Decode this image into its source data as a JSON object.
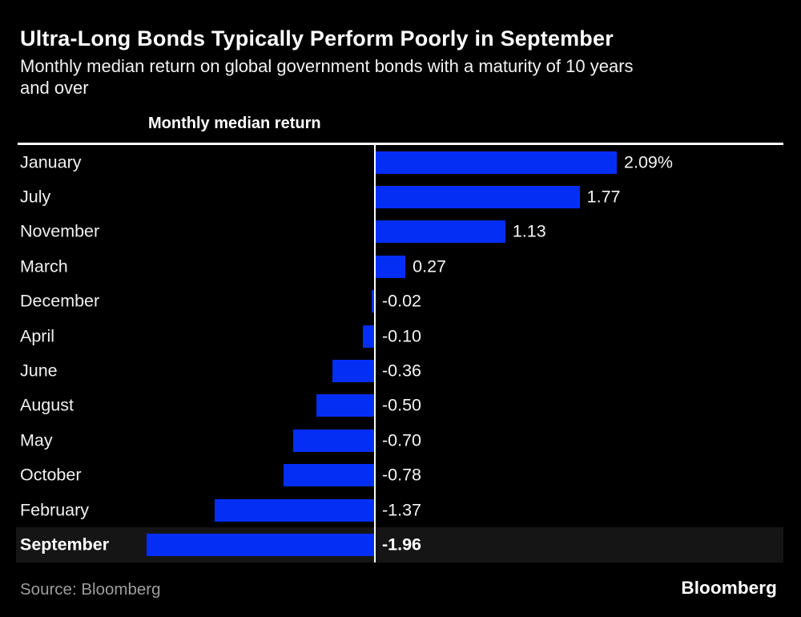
{
  "header": {
    "title": "Ultra-Long Bonds Typically Perform Poorly in September",
    "subtitle": "Monthly median return on global government bonds with a maturity of 10 years\nand over"
  },
  "chart_data": {
    "type": "bar",
    "orientation": "horizontal",
    "title": "Ultra-Long Bonds Typically Perform Poorly in September",
    "subtitle": "Monthly median return on global government bonds with a maturity of 10 years and over",
    "series_label": "Monthly median return",
    "categories": [
      "January",
      "July",
      "November",
      "March",
      "December",
      "April",
      "June",
      "August",
      "May",
      "October",
      "February",
      "September"
    ],
    "values": [
      2.09,
      1.77,
      1.13,
      0.27,
      -0.02,
      -0.1,
      -0.36,
      -0.5,
      -0.7,
      -0.78,
      -1.37,
      -1.96
    ],
    "value_labels": [
      "2.09%",
      "1.77",
      "1.13",
      "0.27",
      "-0.02",
      "-0.10",
      "-0.36",
      "-0.50",
      "-0.70",
      "-0.78",
      "-1.37",
      "-1.96"
    ],
    "unit": "%",
    "baseline": 0,
    "xlim": [
      -3.1,
      3.5
    ],
    "grid": false,
    "legend": false,
    "highlighted_category": "September",
    "bar_color": "#052ef5",
    "highlight_row_color": "#151515",
    "background_color": "#000000"
  },
  "footer": {
    "source": "Source: Bloomberg",
    "logo": "Bloomberg"
  }
}
